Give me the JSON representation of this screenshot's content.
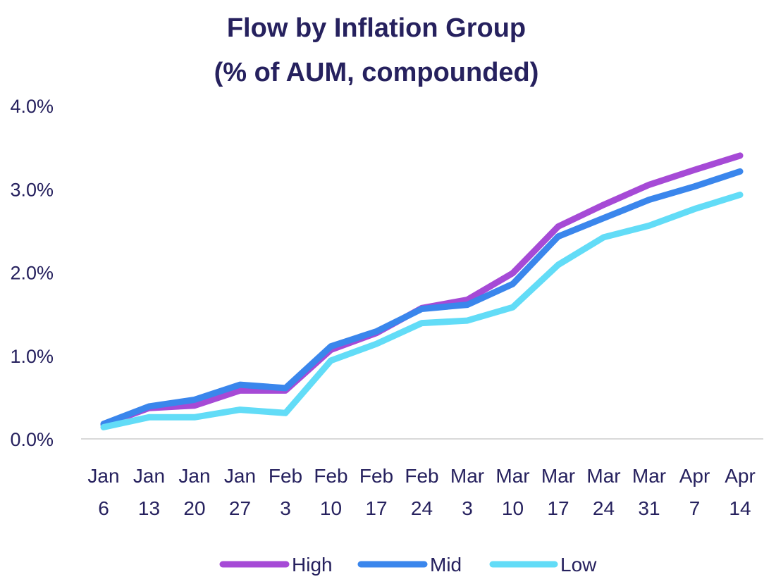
{
  "chart_data": {
    "type": "line",
    "title_lines": [
      "Flow by Inflation Group",
      "(% of AUM, compounded)"
    ],
    "xlabel": "",
    "ylabel": "",
    "ylim": [
      0,
      4
    ],
    "yticks": [
      0,
      1,
      2,
      3,
      4
    ],
    "ytick_labels": [
      "0.0%",
      "1.0%",
      "2.0%",
      "3.0%",
      "4.0%"
    ],
    "categories": [
      [
        "Jan",
        "6"
      ],
      [
        "Jan",
        "13"
      ],
      [
        "Jan",
        "20"
      ],
      [
        "Jan",
        "27"
      ],
      [
        "Feb",
        "3"
      ],
      [
        "Feb",
        "10"
      ],
      [
        "Feb",
        "17"
      ],
      [
        "Feb",
        "24"
      ],
      [
        "Mar",
        "3"
      ],
      [
        "Mar",
        "10"
      ],
      [
        "Mar",
        "17"
      ],
      [
        "Mar",
        "24"
      ],
      [
        "Mar",
        "31"
      ],
      [
        "Apr",
        "7"
      ],
      [
        "Apr",
        "14"
      ]
    ],
    "series": [
      {
        "name": "High",
        "color": "#a64ad6",
        "values": [
          0.17,
          0.37,
          0.4,
          0.58,
          0.58,
          1.07,
          1.27,
          1.57,
          1.67,
          1.99,
          2.55,
          2.81,
          3.05,
          3.23,
          3.4
        ]
      },
      {
        "name": "Mid",
        "color": "#3a86ec",
        "values": [
          0.18,
          0.39,
          0.47,
          0.65,
          0.61,
          1.11,
          1.29,
          1.56,
          1.61,
          1.86,
          2.43,
          2.65,
          2.87,
          3.03,
          3.21
        ]
      },
      {
        "name": "Low",
        "color": "#62dcf7",
        "values": [
          0.14,
          0.26,
          0.26,
          0.35,
          0.31,
          0.94,
          1.14,
          1.39,
          1.42,
          1.58,
          2.09,
          2.42,
          2.56,
          2.76,
          2.93
        ]
      }
    ],
    "grid": false,
    "legend_position": "bottom"
  }
}
